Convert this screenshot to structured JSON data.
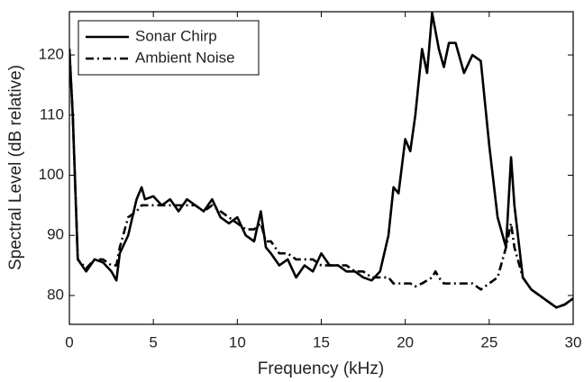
{
  "chart_data": {
    "type": "line",
    "xlabel": "Frequency (kHz)",
    "ylabel": "Spectral Level (dB relative)",
    "x": [
      0,
      0.2,
      0.5,
      1,
      1.5,
      2,
      2.5,
      2.8,
      3,
      3.5,
      4,
      4.3,
      4.5,
      5,
      5.5,
      6,
      6.5,
      7,
      7.5,
      8,
      8.5,
      9,
      9.5,
      10,
      10.5,
      11,
      11.4,
      11.7,
      12,
      12.5,
      13,
      13.5,
      14,
      14.5,
      15,
      15.5,
      16,
      16.5,
      17,
      17.5,
      18,
      18.5,
      19,
      19.3,
      19.6,
      20,
      20.3,
      20.6,
      21,
      21.3,
      21.6,
      21.8,
      22,
      22.3,
      22.6,
      23,
      23.5,
      24,
      24.5,
      25,
      25.5,
      26,
      26.3,
      26.5,
      27,
      27.5,
      28,
      28.5,
      29,
      29.5,
      30
    ],
    "series": [
      {
        "name": "Sonar Chirp",
        "color": "#000000",
        "style": "solid",
        "values": [
          121,
          110,
          86,
          84,
          86,
          85.5,
          84,
          82.5,
          87,
          90,
          96,
          98,
          96,
          96.5,
          95,
          96,
          94,
          96,
          95,
          94,
          96,
          93,
          92,
          93,
          90,
          89,
          94,
          88,
          87,
          85,
          86,
          83,
          85,
          84,
          87,
          85,
          85,
          84,
          84,
          83,
          82.5,
          84,
          90,
          98,
          97,
          106,
          104,
          110,
          121,
          117,
          127,
          124,
          121,
          118,
          122,
          122,
          117,
          120,
          119,
          105,
          93,
          88,
          103,
          95,
          83,
          81,
          80,
          79,
          78,
          78.5,
          79.5
        ]
      },
      {
        "name": "Ambient Noise",
        "color": "#000000",
        "style": "dashdot",
        "values": [
          121,
          110,
          86,
          84.5,
          86,
          86,
          85,
          85,
          88,
          93,
          94,
          95,
          95,
          95,
          95,
          95,
          95,
          95,
          95,
          94,
          95,
          94,
          93,
          92,
          91,
          91,
          92,
          89,
          89,
          87,
          87,
          86,
          86,
          86,
          85,
          85,
          85,
          85,
          84,
          84,
          83,
          83,
          83,
          82,
          82,
          82,
          82,
          81.5,
          82,
          82.5,
          83,
          84,
          83,
          82,
          82,
          82,
          82,
          82,
          81,
          82,
          83,
          88,
          92,
          88,
          83,
          81,
          80,
          79,
          78,
          78.5,
          79.5
        ]
      }
    ],
    "xlim": [
      0,
      30
    ],
    "xticks": [
      0,
      5,
      10,
      15,
      20,
      25,
      30
    ],
    "ylim": [
      75.2,
      127.2
    ],
    "yticks": [
      80,
      90,
      100,
      110,
      120
    ],
    "grid": false,
    "legend": "upper-left"
  }
}
